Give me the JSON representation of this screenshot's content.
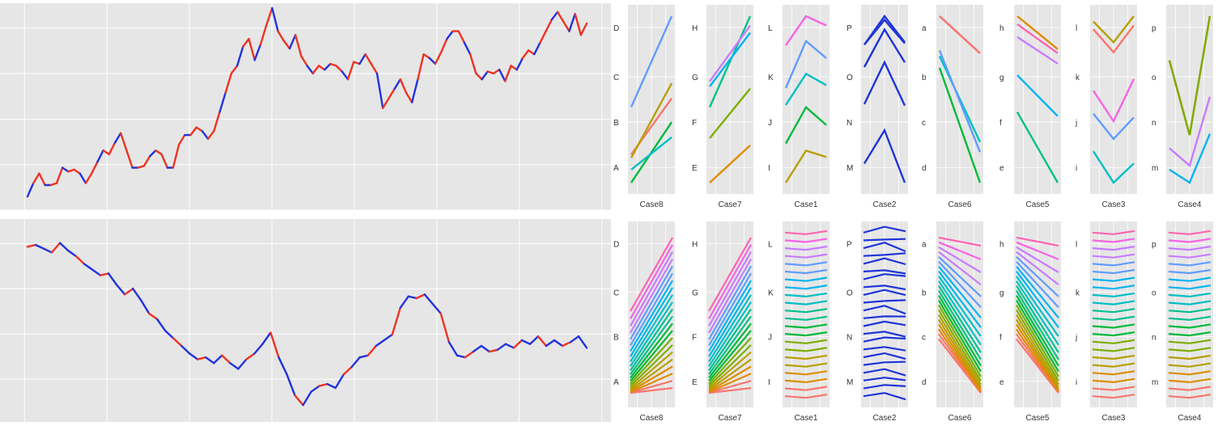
{
  "caption": "",
  "colors": {
    "panel_bg": "#e6e6e6",
    "grid": "#ffffff",
    "series_red": "#ee3322",
    "series_blue": "#2233dd",
    "case2": "#1f35d8"
  },
  "chart_data": [
    {
      "type": "line",
      "grid": true,
      "series": [
        {
          "color": "red/blue segments",
          "values": [
            0.02,
            0.09,
            0.14,
            0.08,
            0.08,
            0.09,
            0.17,
            0.15,
            0.16,
            0.14,
            0.09,
            0.14,
            0.2,
            0.26,
            0.24,
            0.3,
            0.35,
            0.26,
            0.17,
            0.17,
            0.18,
            0.23,
            0.26,
            0.24,
            0.17,
            0.17,
            0.29,
            0.34,
            0.34,
            0.38,
            0.36,
            0.32,
            0.36,
            0.46,
            0.56,
            0.66,
            0.7,
            0.8,
            0.84,
            0.73,
            0.81,
            0.91,
            1.0,
            0.88,
            0.83,
            0.79,
            0.86,
            0.75,
            0.7,
            0.66,
            0.7,
            0.68,
            0.71,
            0.7,
            0.67,
            0.63,
            0.72,
            0.71,
            0.76,
            0.71,
            0.66,
            0.48,
            0.53,
            0.58,
            0.63,
            0.56,
            0.51,
            0.63,
            0.76,
            0.74,
            0.71,
            0.77,
            0.84,
            0.88,
            0.88,
            0.82,
            0.76,
            0.66,
            0.63,
            0.67,
            0.66,
            0.68,
            0.62,
            0.7,
            0.68,
            0.74,
            0.78,
            0.76,
            0.82,
            0.88,
            0.94,
            0.98,
            0.93,
            0.88,
            0.97,
            0.86,
            0.92
          ]
        }
      ]
    },
    {
      "type": "line",
      "grid": true,
      "series": [
        {
          "color": "blue/red segments",
          "values": [
            0.88,
            0.89,
            0.87,
            0.85,
            0.9,
            0.86,
            0.83,
            0.79,
            0.76,
            0.73,
            0.74,
            0.68,
            0.63,
            0.66,
            0.6,
            0.53,
            0.5,
            0.44,
            0.4,
            0.36,
            0.32,
            0.29,
            0.3,
            0.27,
            0.31,
            0.27,
            0.24,
            0.29,
            0.32,
            0.37,
            0.43,
            0.3,
            0.21,
            0.1,
            0.05,
            0.12,
            0.15,
            0.16,
            0.14,
            0.21,
            0.25,
            0.3,
            0.31,
            0.36,
            0.39,
            0.42,
            0.56,
            0.62,
            0.61,
            0.63,
            0.58,
            0.53,
            0.38,
            0.31,
            0.3,
            0.33,
            0.36,
            0.33,
            0.34,
            0.37,
            0.35,
            0.39,
            0.37,
            0.41,
            0.36,
            0.39,
            0.36,
            0.38,
            0.41,
            0.35
          ]
        }
      ]
    },
    {
      "type": "line",
      "note_rows": "Top row: 5 lines per case. Bottom row: many lines per case.",
      "y_levels": [
        "A/E/I/M/e/i/m/d",
        "B/F/J/N/f/j/n/c",
        "C/G/K/O/g/k/o/b",
        "D/H/L/P/h/l/p/a"
      ],
      "cases_top": [
        {
          "xlabel": "Case8",
          "ylabels": [
            "A",
            "B",
            "C",
            "D"
          ],
          "lines": [
            [
              0.08,
              0.6
            ],
            [
              0.05,
              0.74
            ],
            [
              -0.18,
              0.38
            ],
            [
              -0.06,
              0.24
            ],
            [
              0.52,
              1.36
            ]
          ]
        },
        {
          "xlabel": "Case7",
          "ylabels": [
            "E",
            "F",
            "G",
            "H"
          ],
          "lines": [
            [
              -0.26,
              0.1
            ],
            [
              0.17,
              0.65
            ],
            [
              0.47,
              1.35
            ],
            [
              0.67,
              1.19
            ],
            [
              0.72,
              1.26
            ]
          ]
        },
        {
          "xlabel": "Case1",
          "ylabels": [
            "I",
            "J",
            "K",
            "L"
          ],
          "lines": [
            [
              -0.31,
              0.14,
              0.05
            ],
            [
              0.24,
              0.75,
              0.5
            ],
            [
              0.78,
              1.22,
              1.06
            ],
            [
              1.02,
              1.68,
              1.44
            ],
            [
              1.62,
              2.03,
              1.9
            ]
          ]
        },
        {
          "xlabel": "Case2",
          "ylabels": [
            "M",
            "N",
            "O",
            "P"
          ],
          "lines": [
            [
              -0.2,
              0.5,
              -0.6
            ],
            [
              1.05,
              1.93,
              1.02
            ],
            [
              1.83,
              2.62,
              1.93
            ],
            [
              2.3,
              2.82,
              2.33
            ],
            [
              2.3,
              2.9,
              2.35
            ]
          ]
        },
        {
          "xlabel": "Case6",
          "ylabels": [
            "d",
            "c",
            "b",
            "a"
          ],
          "lines": [
            [
              1.34,
              -0.24
            ],
            [
              1.5,
              0.32
            ],
            [
              1.58,
              0.18
            ],
            [
              2.05,
              1.54
            ],
            [
              2.05,
              1.54
            ]
          ]
        },
        {
          "xlabel": "Case5",
          "ylabels": [
            "e",
            "f",
            "g",
            "h"
          ],
          "lines": [
            [
              0.96,
              -0.26
            ],
            [
              1.6,
              0.89
            ],
            [
              2.26,
              1.8
            ],
            [
              2.48,
              1.98
            ],
            [
              2.62,
              2.05
            ]
          ]
        },
        {
          "xlabel": "Case3",
          "ylabels": [
            "i",
            "j",
            "k",
            "l"
          ],
          "lines": [
            [
              0.76,
              0.35,
              0.6
            ],
            [
              1.25,
              0.92,
              1.2
            ],
            [
              1.55,
              1.15,
              1.7
            ],
            [
              2.35,
              2.05,
              2.4
            ],
            [
              2.45,
              2.18,
              2.52
            ]
          ]
        },
        {
          "xlabel": "Case4",
          "ylabels": [
            "m",
            "n",
            "o",
            "p"
          ],
          "lines": [
            [
              0.12,
              -0.08,
              0.67
            ],
            [
              0.45,
              0.18,
              1.24
            ],
            [
              1.8,
              0.65,
              2.48
            ],
            [
              1.8,
              0.65,
              2.48
            ],
            [
              1.8,
              0.65,
              2.48
            ]
          ]
        }
      ],
      "cases_bottom": [
        {
          "xlabel": "Case8",
          "ylabels": [
            "A",
            "B",
            "C",
            "D"
          ]
        },
        {
          "xlabel": "Case7",
          "ylabels": [
            "E",
            "F",
            "G",
            "H"
          ]
        },
        {
          "xlabel": "Case1",
          "ylabels": [
            "I",
            "J",
            "K",
            "L"
          ]
        },
        {
          "xlabel": "Case2",
          "ylabels": [
            "M",
            "N",
            "O",
            "P"
          ]
        },
        {
          "xlabel": "Case6",
          "ylabels": [
            "d",
            "c",
            "b",
            "a"
          ]
        },
        {
          "xlabel": "Case5",
          "ylabels": [
            "e",
            "f",
            "g",
            "h"
          ]
        },
        {
          "xlabel": "Case3",
          "ylabels": [
            "i",
            "j",
            "k",
            "l"
          ]
        },
        {
          "xlabel": "Case4",
          "ylabels": [
            "m",
            "n",
            "o",
            "p"
          ]
        }
      ],
      "palette": [
        "#f8766d",
        "#de8c00",
        "#b79f00",
        "#7cae00",
        "#00ba38",
        "#00c08b",
        "#00bfc4",
        "#00b4f0",
        "#619cff",
        "#c77cff",
        "#f564e3",
        "#ff64b0"
      ]
    }
  ]
}
